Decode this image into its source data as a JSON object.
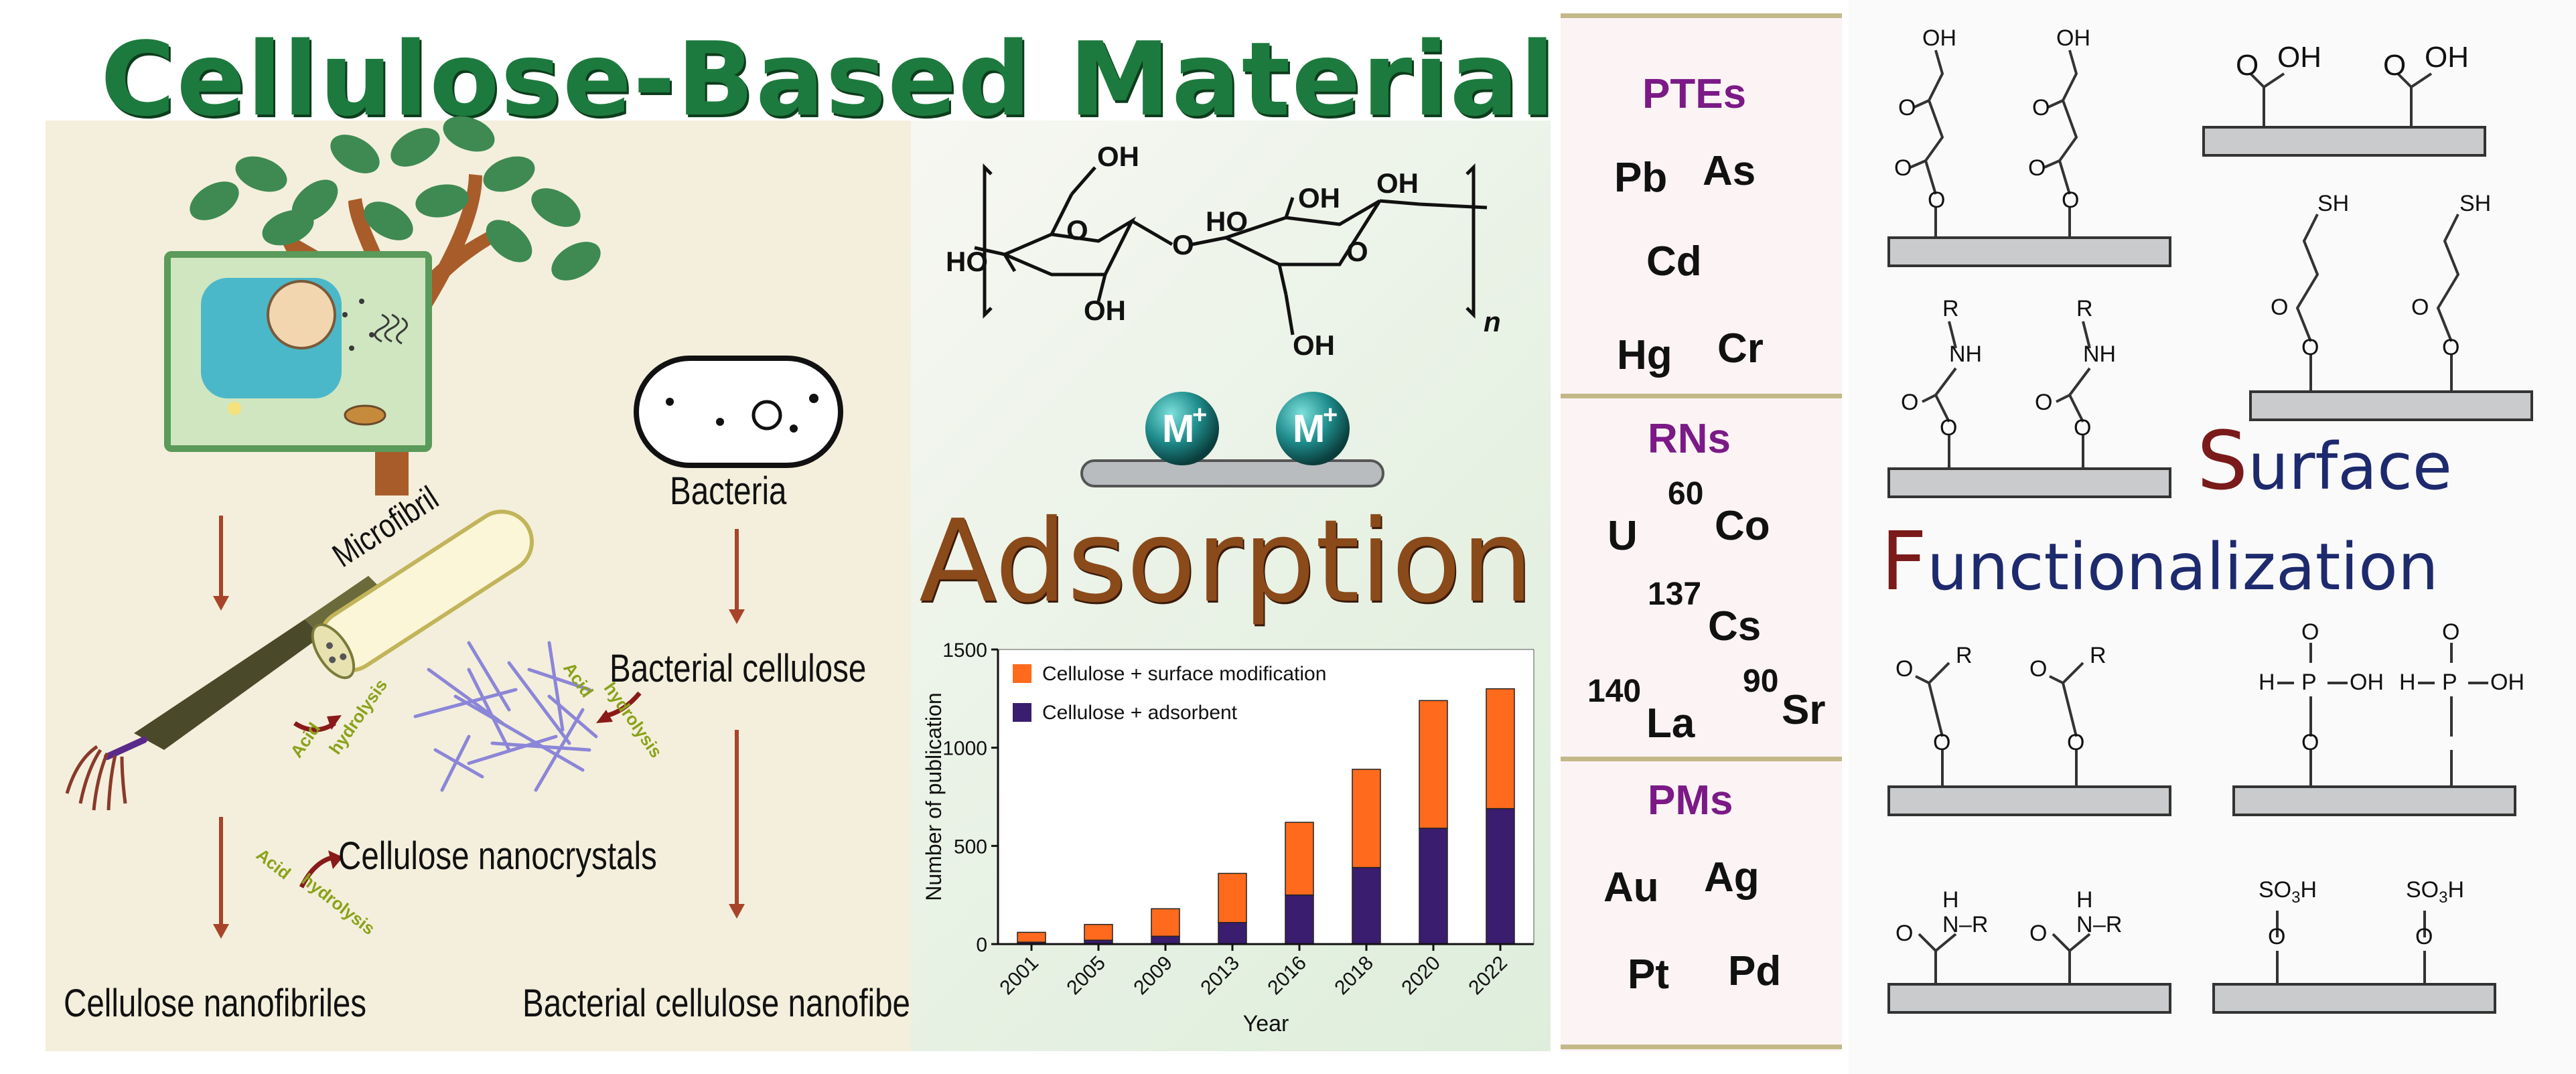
{
  "title": "Cellulose-Based Materials",
  "left_panel": {
    "microfibril": "Microfibril",
    "bacteria": "Bacteria",
    "bacterial_cellulose": "Bacterial cellulose",
    "acid_hydrolysis_acid": "Acid",
    "acid_hydrolysis_hyd": "hydrolysis",
    "cellulose_nanocrystals": "Cellulose nanocrystals",
    "cellulose_nanofibriles": "Cellulose nanofibriles",
    "bacterial_cellulose_nanofibers": "Bacterial cellulose nanofibers"
  },
  "middle_panel": {
    "structure": {
      "oh": "OH",
      "ho": "HO",
      "o": "O",
      "n": "n"
    },
    "ion": "M",
    "ion_charge": "+",
    "adsorption": "Adsorption"
  },
  "chart_data": {
    "type": "bar",
    "stacked": true,
    "categories": [
      "2001",
      "2005",
      "2009",
      "2013",
      "2016",
      "2018",
      "2020",
      "2022"
    ],
    "series": [
      {
        "name": "Cellulose + surface modification",
        "color": "#ff6a1c",
        "values": [
          50,
          80,
          140,
          250,
          370,
          500,
          650,
          610
        ]
      },
      {
        "name": "Cellulose + adsorbent",
        "color": "#3a1d6e",
        "values": [
          10,
          20,
          40,
          110,
          250,
          390,
          590,
          690
        ]
      }
    ],
    "xlabel": "Year",
    "ylabel": "Number of publication",
    "ylim": [
      0,
      1500
    ],
    "yticks": [
      "0",
      "500",
      "1000",
      "1500"
    ],
    "legend_position": "top-left"
  },
  "pollutants": {
    "pte_label": "PTEs",
    "pte": {
      "pb": "Pb",
      "as": "As",
      "cd": "Cd",
      "hg": "Hg",
      "cr": "Cr"
    },
    "rn_label": "RNs",
    "rn": {
      "u": "U",
      "co_mass": "60",
      "co": "Co",
      "cs_mass": "137",
      "cs": "Cs",
      "la_mass": "140",
      "la": "La",
      "sr_mass": "90",
      "sr": "Sr"
    },
    "pm_label": "PMs",
    "pm": {
      "au": "Au",
      "ag": "Ag",
      "pt": "Pt",
      "pd": "Pd"
    }
  },
  "right_panel": {
    "surface_initial": "S",
    "surface_rest": "urface",
    "functionalization_initial": "F",
    "functionalization_rest": "unctionalization",
    "atoms": {
      "oh": "OH",
      "o": "O",
      "sh": "SH",
      "r": "R",
      "nh": "NH",
      "n": "N",
      "h": "H",
      "p": "P",
      "r_tail": "–R",
      "so3h_a": "SO",
      "so3h_sub": "3",
      "so3h_b": "H"
    }
  }
}
